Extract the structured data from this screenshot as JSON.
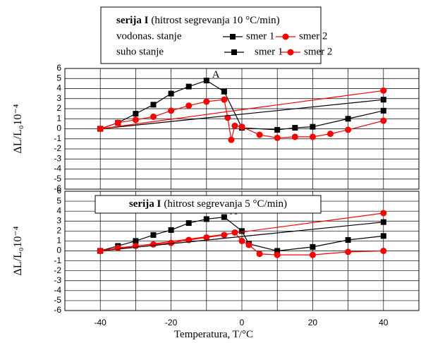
{
  "chart_data": [
    {
      "type": "line",
      "title_bold": "serija I",
      "title": "(hitrost segrevanja 10 °C/min)",
      "ylabel": "ΔL/L₀10⁻⁴",
      "annotation": "A",
      "xlim": [
        -50,
        50
      ],
      "xticks": [
        -40,
        -20,
        0,
        20,
        40
      ],
      "xminor": [
        -30,
        -10,
        10,
        30
      ],
      "show_xtick_labels": false,
      "ylim": [
        -6,
        6
      ],
      "yticks": [
        -6,
        -5,
        -4,
        -3,
        -2,
        -1,
        0,
        1,
        2,
        3,
        4,
        5,
        6
      ],
      "grid": true,
      "groups": [
        {
          "label": "vodonas. stanje",
          "series": [
            {
              "name": "smer 1",
              "color": "#000000",
              "marker": "square",
              "x": [
                -40,
                -35,
                -30,
                -25,
                -20,
                -15,
                -10,
                -5,
                0,
                10,
                15,
                20,
                30,
                40
              ],
              "values": [
                0,
                0.6,
                1.5,
                2.4,
                3.5,
                4.2,
                4.8,
                3.7,
                0.1,
                -0.1,
                0.1,
                0.2,
                1.0,
                1.8
              ]
            },
            {
              "name": "smer 2",
              "color": "#ff0000",
              "marker": "circle",
              "x": [
                -40,
                -35,
                -30,
                -25,
                -20,
                -15,
                -10,
                -5,
                -4,
                -3,
                -2,
                0,
                5,
                10,
                15,
                20,
                25,
                30,
                40
              ],
              "values": [
                0,
                0.6,
                0.9,
                1.2,
                1.8,
                2.3,
                2.7,
                2.9,
                1.1,
                -1.1,
                0.3,
                0.2,
                -0.6,
                -0.9,
                -0.8,
                -0.8,
                -0.5,
                -0.1,
                0.8
              ]
            }
          ]
        },
        {
          "label": "suho stanje",
          "series": [
            {
              "name": "smer 1",
              "color": "#000000",
              "marker": "square",
              "x": [
                -40,
                40
              ],
              "values": [
                0,
                2.9
              ]
            },
            {
              "name": "smer 2",
              "color": "#ff0000",
              "marker": "circle",
              "x": [
                -40,
                40
              ],
              "values": [
                0,
                3.8
              ]
            }
          ]
        }
      ]
    },
    {
      "type": "line",
      "title_bold": "serija I",
      "title": "(hitrost segrevanja 5 °C/min)",
      "ylabel": "ΔL/L₀10⁻⁴",
      "xlabel": "Temperatura, T/°C",
      "annotation": "A",
      "xlim": [
        -50,
        50
      ],
      "xticks": [
        -40,
        -20,
        0,
        20,
        40
      ],
      "xminor": [
        -30,
        -10,
        10,
        30
      ],
      "show_xtick_labels": true,
      "ylim": [
        -6,
        6
      ],
      "yticks": [
        -6,
        -5,
        -4,
        -3,
        -2,
        -1,
        0,
        1,
        2,
        3,
        4,
        5,
        6
      ],
      "grid": true,
      "series": [
        {
          "color": "#000000",
          "marker": "square",
          "x": [
            -40,
            -35,
            -30,
            -25,
            -20,
            -15,
            -10,
            -5,
            0,
            2,
            10,
            20,
            30,
            40
          ],
          "values": [
            0,
            0.5,
            1.0,
            1.6,
            2.1,
            2.8,
            3.2,
            3.4,
            2.0,
            0.7,
            0.0,
            0.4,
            1.1,
            1.5
          ]
        },
        {
          "color": "#ff0000",
          "marker": "circle",
          "x": [
            -40,
            -35,
            -30,
            -25,
            -20,
            -15,
            -10,
            -5,
            -2,
            0,
            2,
            5,
            10,
            20,
            30,
            40
          ],
          "values": [
            0,
            0.3,
            0.5,
            0.65,
            0.8,
            1.1,
            1.35,
            1.6,
            1.85,
            1.0,
            0.6,
            -0.3,
            -0.4,
            -0.4,
            -0.1,
            0
          ]
        },
        {
          "color": "#000000",
          "marker": "square",
          "x": [
            -40,
            40
          ],
          "values": [
            0,
            2.9
          ]
        },
        {
          "color": "#ff0000",
          "marker": "circle",
          "x": [
            -40,
            40
          ],
          "values": [
            0,
            3.8
          ]
        }
      ]
    }
  ]
}
